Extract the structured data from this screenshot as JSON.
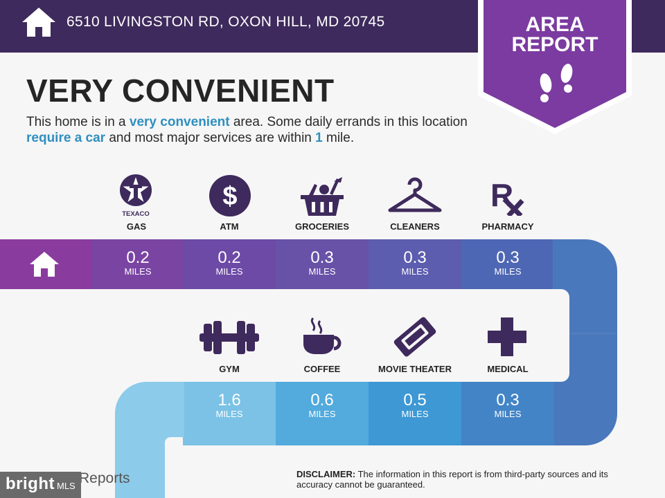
{
  "header": {
    "address": "6510 LIVINGSTON RD, OXON HILL, MD 20745"
  },
  "badge": {
    "line1": "AREA",
    "line2": "REPORT"
  },
  "headline": "VERY CONVENIENT",
  "description": {
    "p1": "This home is in a ",
    "hl1": "very convenient",
    "p2": " area. Some daily errands in this location ",
    "hl2": "require a car",
    "p3": " and most major services are within ",
    "hl3": "1",
    "p4": " mile."
  },
  "texaco_label": "TEXACO",
  "row1": [
    {
      "label": "GAS",
      "value": "0.2",
      "unit": "MILES",
      "icon": "texaco-icon"
    },
    {
      "label": "ATM",
      "value": "0.2",
      "unit": "MILES",
      "icon": "dollar-icon"
    },
    {
      "label": "GROCERIES",
      "value": "0.3",
      "unit": "MILES",
      "icon": "basket-icon"
    },
    {
      "label": "CLEANERS",
      "value": "0.3",
      "unit": "MILES",
      "icon": "hanger-icon"
    },
    {
      "label": "PHARMACY",
      "value": "0.3",
      "unit": "MILES",
      "icon": "rx-icon"
    }
  ],
  "row2": [
    {
      "label": "GYM",
      "value": "1.6",
      "unit": "MILES",
      "icon": "dumbbell-icon"
    },
    {
      "label": "COFFEE",
      "value": "0.6",
      "unit": "MILES",
      "icon": "coffee-icon"
    },
    {
      "label": "MOVIE THEATER",
      "value": "0.5",
      "unit": "MILES",
      "icon": "ticket-icon"
    },
    {
      "label": "MEDICAL",
      "value": "0.3",
      "unit": "MILES",
      "icon": "medical-cross-icon"
    }
  ],
  "footer": {
    "disclaimer_label": "DISCLAIMER:",
    "disclaimer_text": " The information in this report is from third-party sources and its accuracy cannot be guaranteed.",
    "brand": "bright",
    "brand_suffix": "MLS",
    "reports": "Reports"
  },
  "colors": {
    "header_bg": "#3e2a5c",
    "badge": "#7b3ba0",
    "accent_text": "#2f8fbf",
    "icon": "#3e2a5c"
  }
}
